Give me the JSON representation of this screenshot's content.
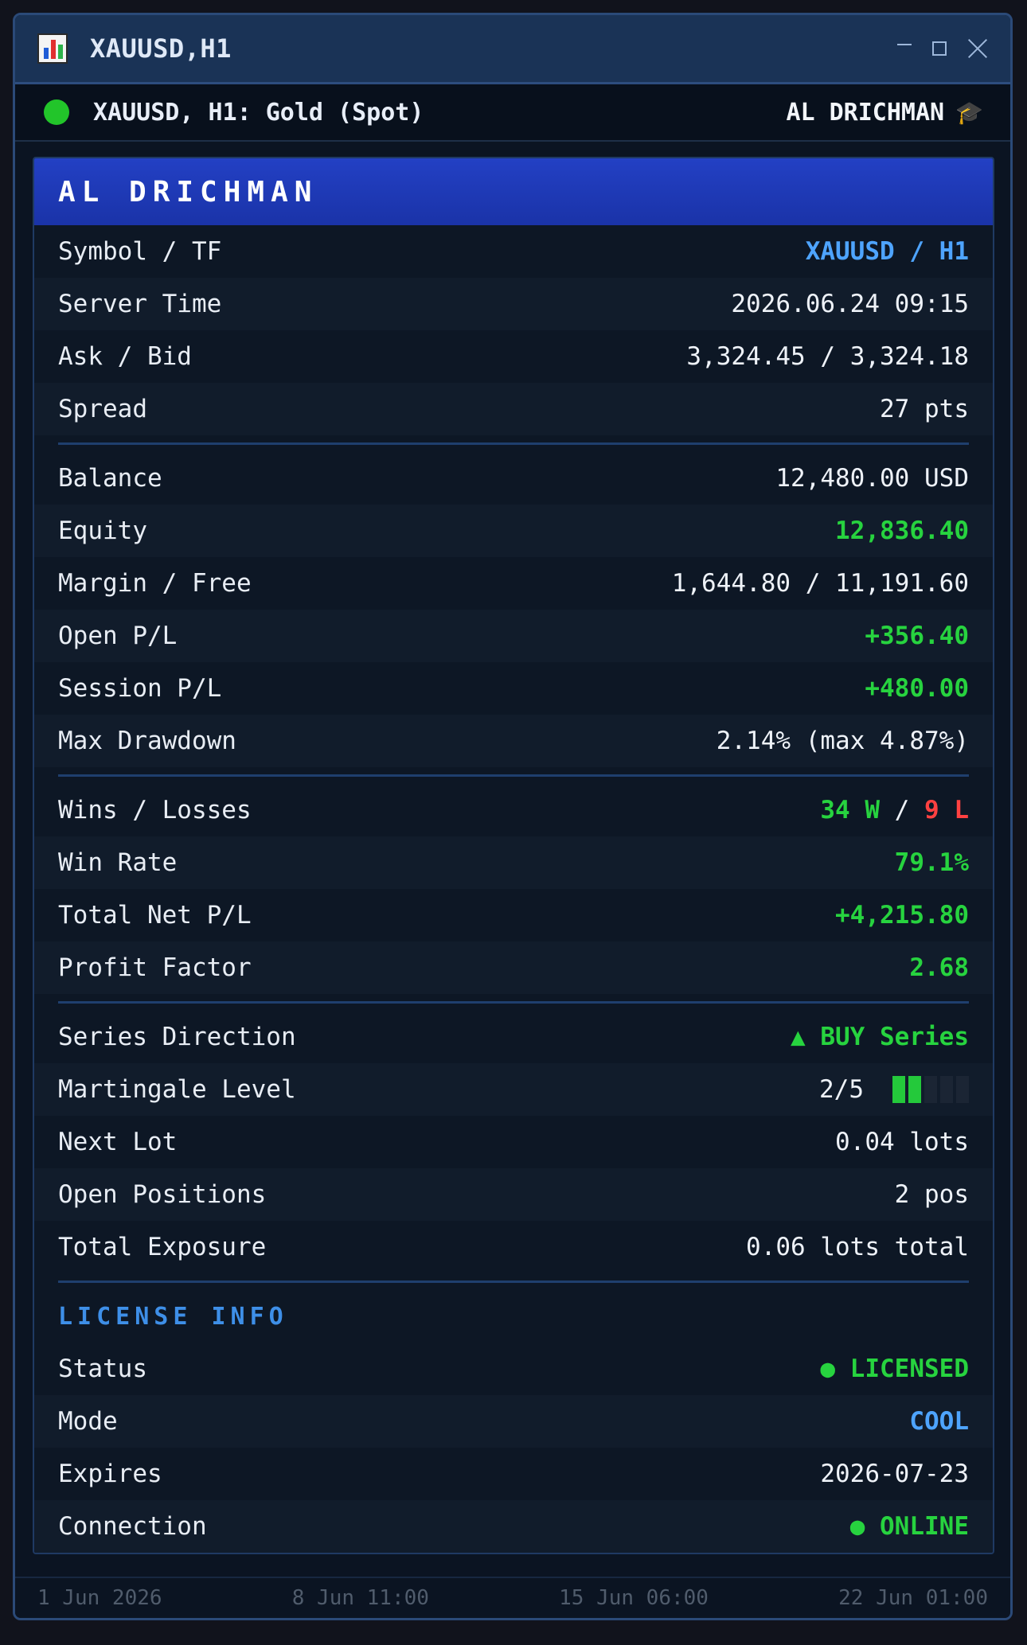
{
  "window": {
    "title": "XAUUSD,H1"
  },
  "chart": {
    "symbol_line": "XAUUSD, H1: Gold (Spot)",
    "expert": "AL DRICHMAN"
  },
  "panel": {
    "title": "AL DRICHMAN",
    "market": [
      {
        "label": "Symbol / TF",
        "value": "XAUUSD / H1"
      },
      {
        "label": "Server Time",
        "value": "2026.06.24 09:15"
      },
      {
        "label": "Ask / Bid",
        "value": "3,324.45 / 3,324.18"
      },
      {
        "label": "Spread",
        "value": "27 pts"
      }
    ],
    "account": [
      {
        "label": "Balance",
        "value": "12,480.00 USD"
      },
      {
        "label": "Equity",
        "value": "12,836.40"
      },
      {
        "label": "Margin / Free",
        "value": "1,644.80 / 11,191.60"
      },
      {
        "label": "Open P/L",
        "value": "+356.40"
      },
      {
        "label": "Session P/L",
        "value": "+480.00"
      },
      {
        "label": "Max Drawdown",
        "value": "2.14% (max 4.87%)"
      }
    ],
    "stats": {
      "wins_losses_label": "Wins / Losses",
      "wins": "34 W",
      "slash": "/",
      "losses": "9 L",
      "win_rate_label": "Win Rate",
      "win_rate": "79.1%",
      "total_net_label": "Total Net P/L",
      "total_net": "+4,215.80",
      "profit_factor_label": "Profit Factor",
      "profit_factor": "2.68"
    },
    "series": {
      "direction_label": "Series Direction",
      "direction": "▲ BUY Series",
      "martingale_label": "Martingale Level",
      "martingale": "2/5",
      "martingale_level": 2,
      "martingale_max": 5,
      "next_lot_label": "Next Lot",
      "next_lot": "0.04 lots",
      "open_pos_label": "Open Positions",
      "open_pos": "2 pos",
      "exposure_label": "Total Exposure",
      "exposure": "0.06 lots total"
    },
    "license": {
      "title": "LICENSE INFO",
      "status_label": "Status",
      "status": "● LICENSED",
      "mode_label": "Mode",
      "mode": "COOL",
      "expires_label": "Expires",
      "expires": "2026-07-23",
      "connection_label": "Connection",
      "connection": "● ONLINE"
    }
  },
  "time_axis": [
    "1 Jun 2026",
    "8 Jun 11:00",
    "15 Jun 06:00",
    "22 Jun 01:00"
  ],
  "colors": {
    "positive": "#27d33f",
    "negative": "#ff4141",
    "accent": "#4ea4ff",
    "header": "#2340c4"
  }
}
